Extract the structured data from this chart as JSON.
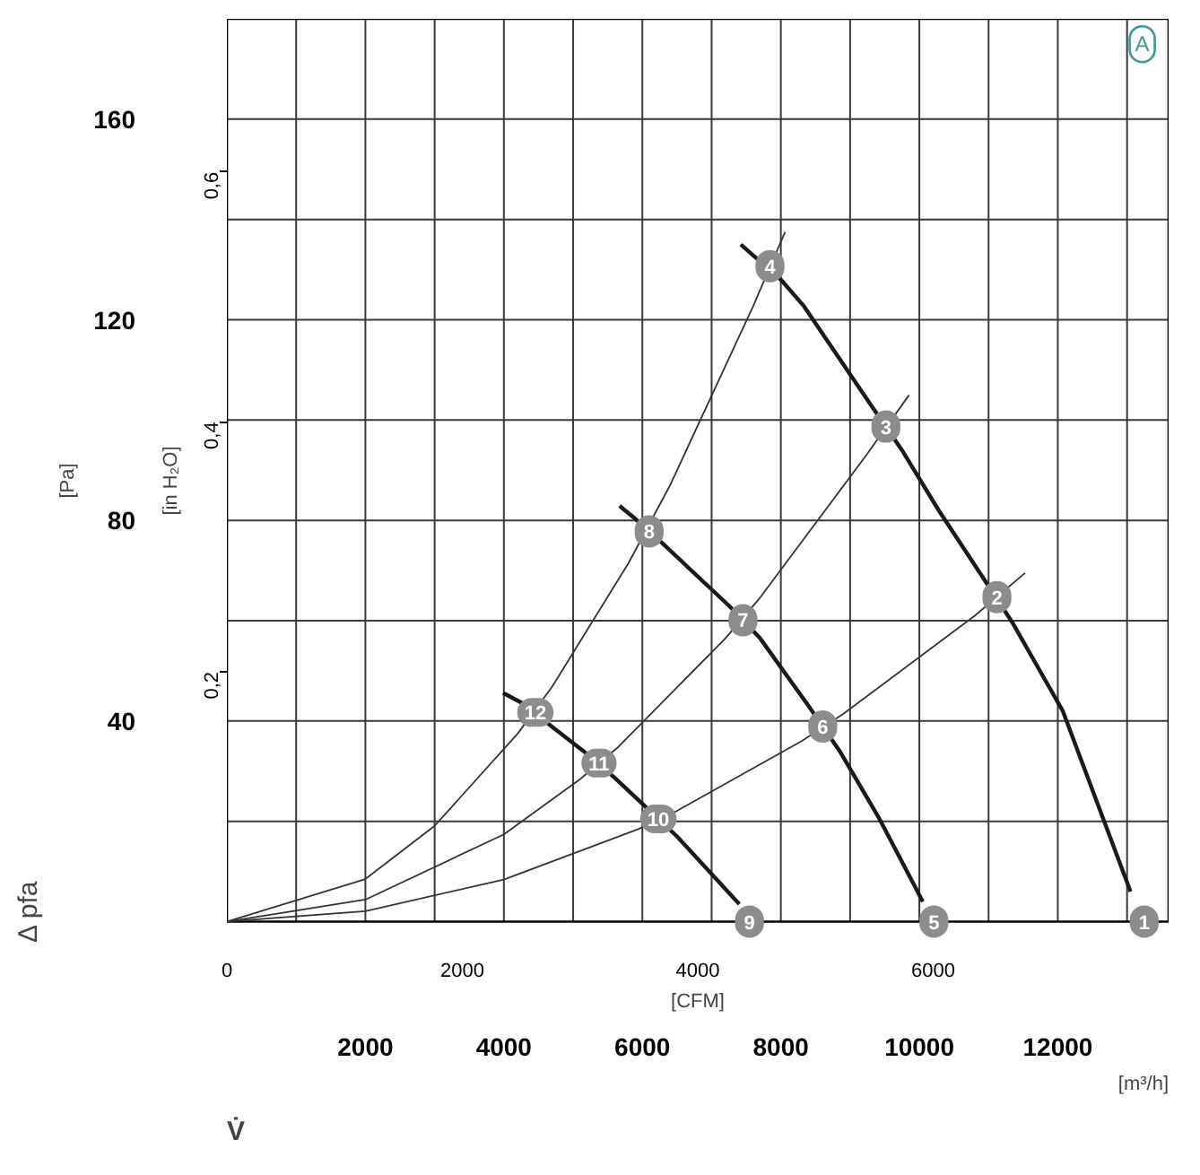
{
  "chart_data": {
    "type": "line",
    "xlabel": "[m³/h]",
    "ylabel": "[Pa]",
    "y2label": "[in H₂O]",
    "x2label": "[CFM]",
    "xlim": [
      0,
      13600
    ],
    "ylim": [
      0,
      180
    ],
    "x2lim": [
      0,
      8000
    ],
    "y2lim": [
      0,
      0.7226
    ],
    "xticks": [
      {
        "value": 1000,
        "label": null
      },
      2000,
      {
        "value": 3000,
        "label": null
      },
      4000,
      {
        "value": 5000,
        "label": null
      },
      6000,
      {
        "value": 7000,
        "label": null
      },
      8000,
      {
        "value": 9000,
        "label": null
      },
      10000,
      {
        "value": 11000,
        "label": null
      },
      12000,
      {
        "value": 13000,
        "label": null
      }
    ],
    "yticks": [
      {
        "value": 20,
        "label": null
      },
      40,
      {
        "value": 60,
        "label": null
      },
      80,
      {
        "value": 100,
        "label": null
      },
      120,
      {
        "value": 140,
        "label": null
      },
      160,
      {
        "value": 180,
        "label": null
      }
    ],
    "x2ticks": [
      0,
      2000,
      4000,
      6000
    ],
    "y2ticks": [
      {
        "value": 0.2,
        "label": "0,2"
      },
      {
        "value": 0.4,
        "label": "0,4"
      },
      {
        "value": 0.6,
        "label": "0,6"
      }
    ],
    "grid": true,
    "marker": "none",
    "line_style": "solid",
    "series": [
      {
        "color": "#1a1a1a",
        "x": [
          7422,
          8000,
          8334,
          9300,
          9750,
          10280,
          10900,
          11350,
          12072,
          13050
        ],
        "values": [
          135,
          128,
          122.7,
          103,
          94,
          82,
          69,
          59.5,
          42,
          6
        ]
      },
      {
        "color": "#1a1a1a",
        "x": [
          5670,
          5900,
          6300,
          7250,
          7700,
          8400,
          8850,
          9424,
          10050
        ],
        "values": [
          82.9,
          80.3,
          75.3,
          63,
          56.5,
          43,
          34,
          20.5,
          4
        ]
      },
      {
        "color": "#1a1a1a",
        "x": [
          3988,
          4250,
          4700,
          5150,
          5600,
          6000,
          6500,
          7400
        ],
        "values": [
          45.6,
          43.7,
          38.8,
          34,
          28.7,
          23.5,
          17,
          3.5
        ]
      },
      {
        "color": "#333333",
        "x": [
          0,
          2000,
          3000,
          4200,
          4700,
          5800,
          6400,
          7600,
          8061
        ],
        "values": [
          0,
          8.5,
          19.1,
          37.5,
          46.9,
          71.5,
          87,
          122.7,
          137.5
        ]
      },
      {
        "color": "#333333",
        "x": [
          0,
          2000,
          4000,
          5100,
          5650,
          7200,
          7700,
          9250,
          9852
        ],
        "values": [
          0,
          4.4,
          17.4,
          28.4,
          34.8,
          56.5,
          64.6,
          93.3,
          105
        ]
      },
      {
        "color": "#333333",
        "x": [
          0,
          2000,
          4000,
          5950,
          6500,
          8300,
          8900,
          10800,
          11526
        ],
        "values": [
          0,
          2.1,
          8.4,
          18.5,
          22.1,
          36,
          41.4,
          61,
          69.5
        ]
      }
    ],
    "annotations": [
      "A",
      "Δ pfa",
      "V̇",
      {
        "text": "1",
        "x": 13248,
        "y": 0
      },
      {
        "text": "2",
        "x": 11121,
        "y": 64.7
      },
      {
        "text": "3",
        "x": 9517,
        "y": 98.7
      },
      {
        "text": "4",
        "x": 7843,
        "y": 130.7
      },
      {
        "text": "5",
        "x": 10210,
        "y": 0
      },
      {
        "text": "6",
        "x": 8605,
        "y": 38.9
      },
      {
        "text": "7",
        "x": 7453,
        "y": 60.1
      },
      {
        "text": "8",
        "x": 6098,
        "y": 77.8
      },
      {
        "text": "9",
        "x": 7547,
        "y": 0
      },
      {
        "text": "10",
        "x": 6231,
        "y": 20.5
      },
      {
        "text": "11",
        "x": 5374,
        "y": 31.6
      },
      {
        "text": "12",
        "x": 4455,
        "y": 41.7
      }
    ]
  }
}
